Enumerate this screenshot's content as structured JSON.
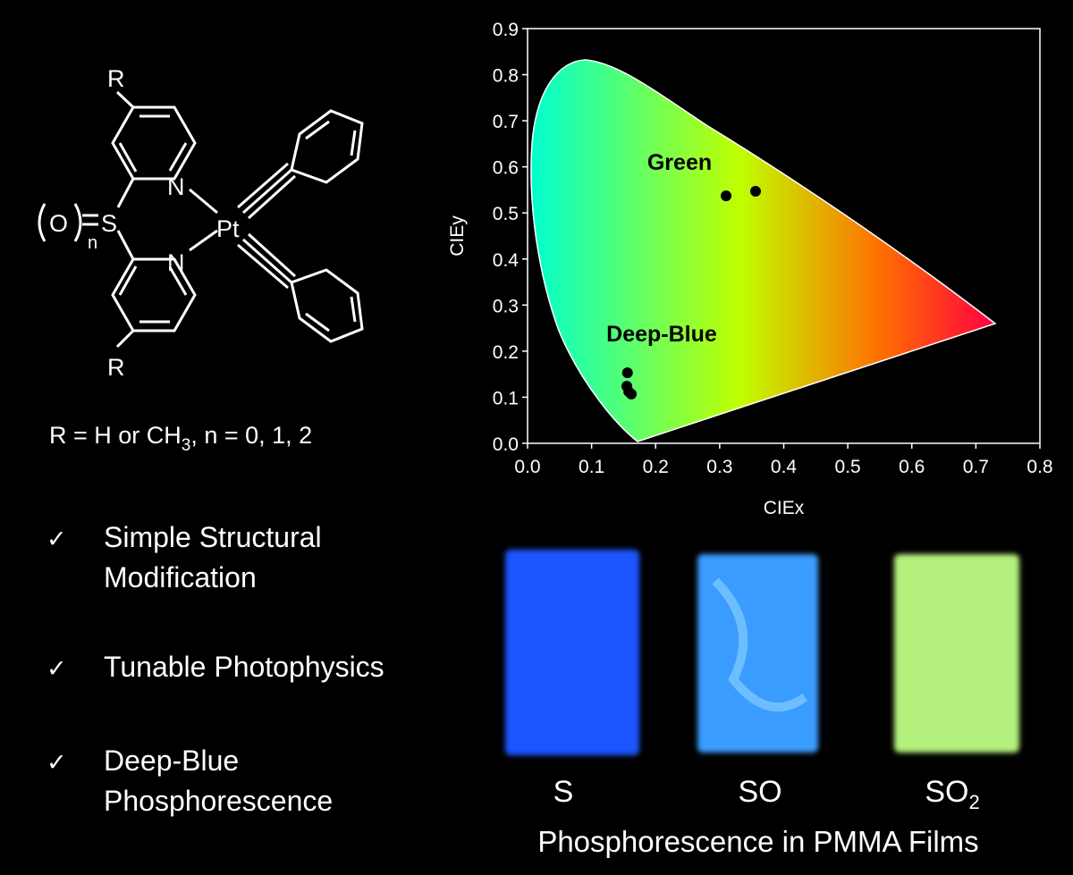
{
  "chart_data": {
    "type": "scatter",
    "xlabel": "CIEx",
    "ylabel": "CIEy",
    "x": [
      0.31,
      0.356,
      0.156,
      0.155,
      0.158,
      0.162
    ],
    "values": [
      0.537,
      0.547,
      0.153,
      0.124,
      0.112,
      0.107
    ],
    "color": "#000000",
    "xlim": [
      0,
      0.8
    ],
    "xticks": [
      {
        "value": 0,
        "label": "0.0"
      },
      0.1,
      0.2,
      0.3,
      0.4,
      0.5,
      0.6,
      0.7,
      0.8
    ],
    "ylim": [
      0,
      0.9
    ],
    "yticks": [
      {
        "value": 0,
        "label": "0.0"
      },
      0.1,
      0.2,
      0.3,
      0.4,
      0.5,
      0.6,
      0.7,
      0.8,
      0.9
    ],
    "annotations": [
      "Green",
      "Deep-Blue"
    ]
  },
  "structure": {
    "r_top": "R",
    "r_bottom": "R",
    "n_top": "N",
    "n_bottom": "N",
    "metal": "Pt",
    "sulfur": "S",
    "oxygen": "O",
    "subscript": "n",
    "caption": [
      "R = H or CH",
      "3",
      ", n = 0, 1, 2"
    ]
  },
  "bullets": {
    "check": "✓",
    "items": [
      [
        "Simple Structural",
        "Modification"
      ],
      [
        "Tunable Photophysics"
      ],
      [
        "Deep-Blue",
        "Phosphorescence"
      ]
    ]
  },
  "films": {
    "labels": [
      [
        "S"
      ],
      [
        "SO"
      ],
      [
        "SO",
        "2"
      ]
    ],
    "caption": "Phosphorescence in PMMA Films"
  }
}
